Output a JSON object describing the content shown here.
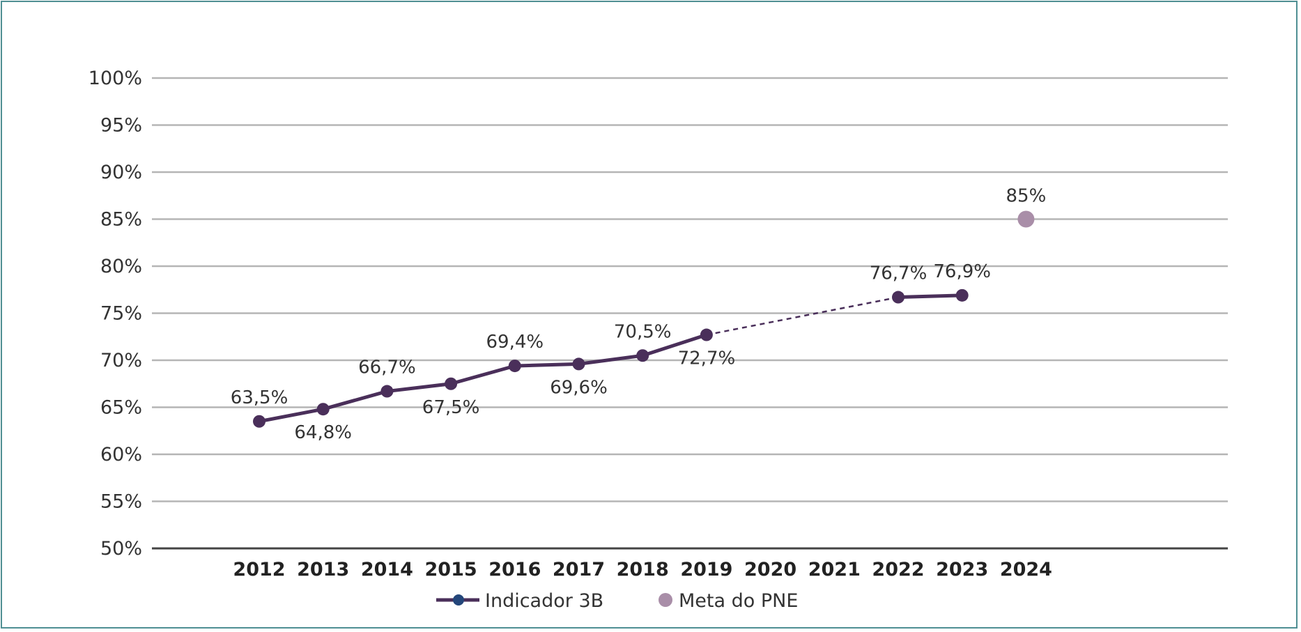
{
  "chart_data": {
    "type": "line",
    "title": "",
    "xlabel": "",
    "ylabel": "",
    "ylim": [
      50,
      100
    ],
    "yticks": [
      "50%",
      "55%",
      "60%",
      "65%",
      "70%",
      "75%",
      "80%",
      "85%",
      "90%",
      "95%",
      "100%"
    ],
    "categories": [
      "2012",
      "2013",
      "2014",
      "2015",
      "2016",
      "2017",
      "2018",
      "2019",
      "2020",
      "2021",
      "2022",
      "2023",
      "2024"
    ],
    "grid": true,
    "legend_position": "bottom",
    "series": [
      {
        "name": "Indicador 3B",
        "color": "#4a2f5a",
        "marker_legend_color": "#24467a",
        "points": [
          {
            "x": "2012",
            "y": 63.5,
            "label": "63,5%",
            "label_pos": "above"
          },
          {
            "x": "2013",
            "y": 64.8,
            "label": "64,8%",
            "label_pos": "below"
          },
          {
            "x": "2014",
            "y": 66.7,
            "label": "66,7%",
            "label_pos": "above"
          },
          {
            "x": "2015",
            "y": 67.5,
            "label": "67,5%",
            "label_pos": "below"
          },
          {
            "x": "2016",
            "y": 69.4,
            "label": "69,4%",
            "label_pos": "above"
          },
          {
            "x": "2017",
            "y": 69.6,
            "label": "69,6%",
            "label_pos": "below"
          },
          {
            "x": "2018",
            "y": 70.5,
            "label": "70,5%",
            "label_pos": "above"
          },
          {
            "x": "2019",
            "y": 72.7,
            "label": "72,7%",
            "label_pos": "below"
          },
          {
            "x": "2022",
            "y": 76.7,
            "label": "76,7%",
            "label_pos": "above"
          },
          {
            "x": "2023",
            "y": 76.9,
            "label": "76,9%",
            "label_pos": "above"
          }
        ],
        "dashed_gap": [
          "2019",
          "2022"
        ]
      },
      {
        "name": "Meta do PNE",
        "color": "#a98ea8",
        "points": [
          {
            "x": "2024",
            "y": 85,
            "label": "85%",
            "label_pos": "above"
          }
        ]
      }
    ]
  }
}
